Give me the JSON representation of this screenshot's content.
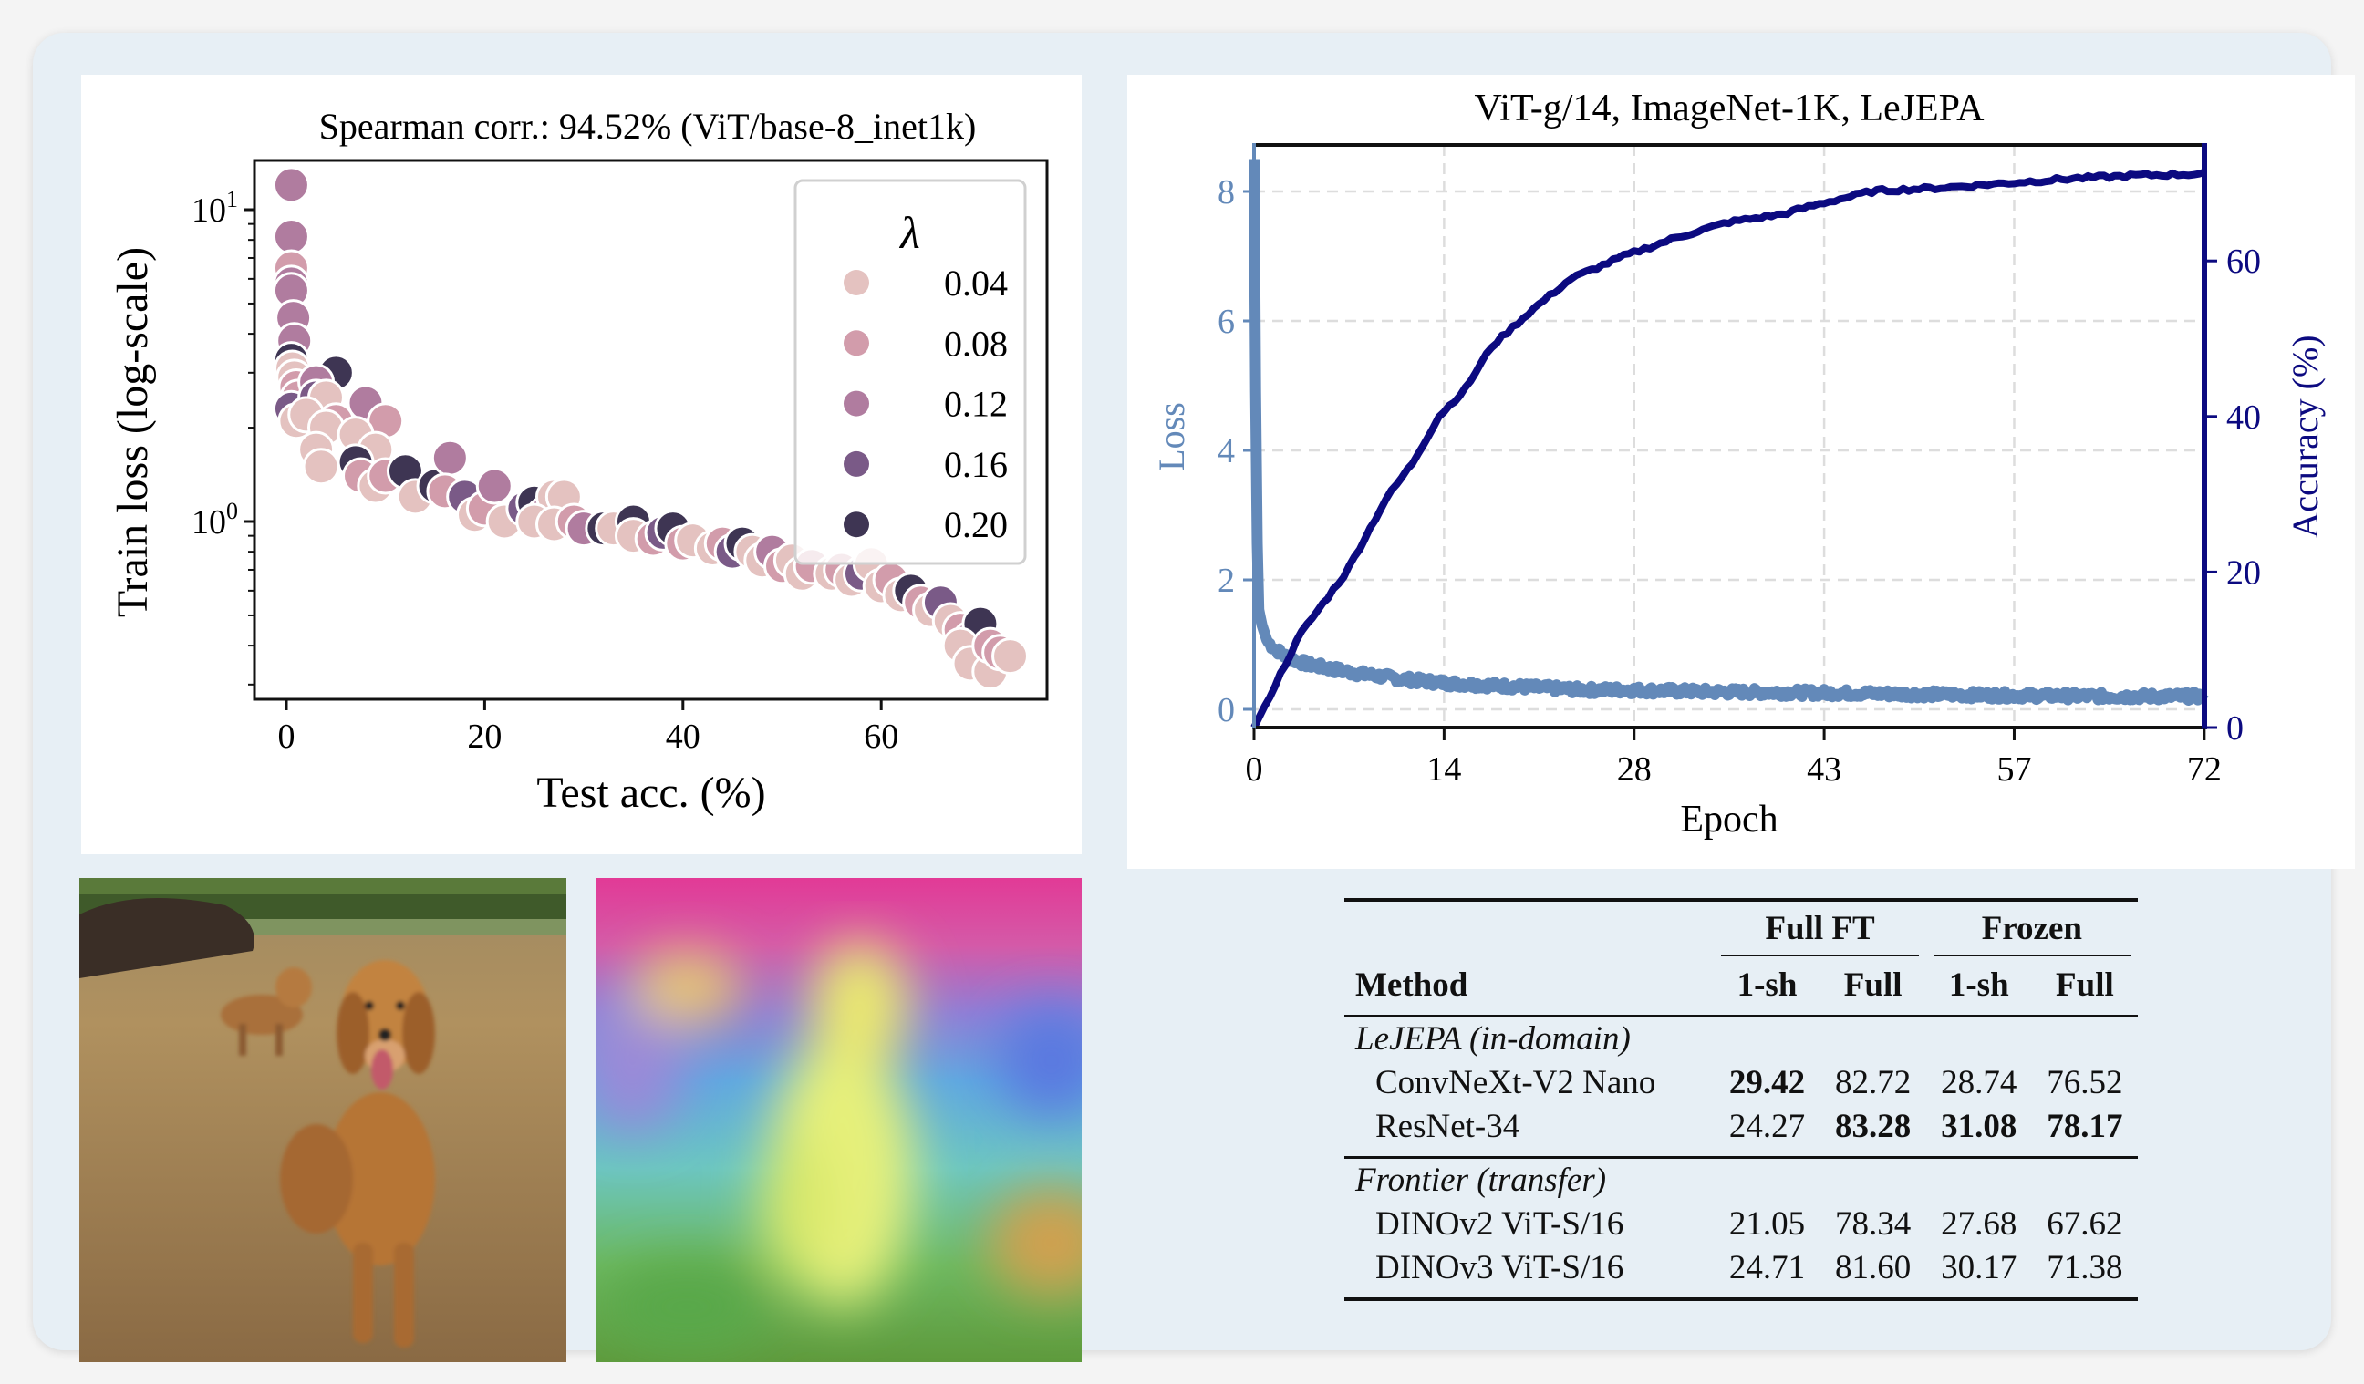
{
  "chart_data": [
    {
      "type": "scatter",
      "title": "Spearman corr.: 94.52% (ViT/base-8_inet1k)",
      "xlabel": "Test acc. (%)",
      "ylabel": "Train loss (log-scale)",
      "xscale": "linear",
      "yscale": "log",
      "xlim": [
        -3,
        77
      ],
      "ylim": [
        0.27,
        14.4
      ],
      "xticks": [
        "0",
        "20",
        "40",
        "60"
      ],
      "xtick_values": [
        0,
        20,
        40,
        60
      ],
      "yticks": [
        {
          "base": "10",
          "exp": "1",
          "value": 10
        },
        {
          "base": "10",
          "exp": "0",
          "value": 1
        }
      ],
      "legend": {
        "title": "λ",
        "placement": "top-right",
        "entries": [
          {
            "label": "0.04",
            "color": "#e4c2c0"
          },
          {
            "label": "0.08",
            "color": "#d29cab"
          },
          {
            "label": "0.12",
            "color": "#b07c9f"
          },
          {
            "label": "0.16",
            "color": "#7a5a87"
          },
          {
            "label": "0.20",
            "color": "#3e3553"
          }
        ]
      },
      "points_format": [
        "test_acc",
        "train_loss",
        "lambda_index"
      ],
      "points": [
        [
          0.5,
          12,
          2
        ],
        [
          0.5,
          8.2,
          2
        ],
        [
          0.5,
          6.5,
          1
        ],
        [
          0.5,
          5.8,
          2
        ],
        [
          0.5,
          5.5,
          2
        ],
        [
          0.7,
          4.5,
          2
        ],
        [
          0.8,
          3.8,
          2
        ],
        [
          0.5,
          3.3,
          4
        ],
        [
          0.6,
          3.1,
          0
        ],
        [
          0.8,
          2.9,
          0
        ],
        [
          1,
          2.7,
          1
        ],
        [
          1.2,
          2.5,
          1
        ],
        [
          0.5,
          2.3,
          3
        ],
        [
          1,
          2.1,
          0
        ],
        [
          5,
          3,
          4
        ],
        [
          3,
          2.8,
          2
        ],
        [
          3,
          2.5,
          3
        ],
        [
          4,
          2.5,
          0
        ],
        [
          2,
          2.2,
          0
        ],
        [
          5,
          2.1,
          1
        ],
        [
          4,
          2,
          0
        ],
        [
          8,
          2.4,
          2
        ],
        [
          10,
          2.1,
          1
        ],
        [
          7,
          1.9,
          0
        ],
        [
          9,
          1.7,
          0
        ],
        [
          3,
          1.7,
          0
        ],
        [
          3.5,
          1.5,
          0
        ],
        [
          7,
          1.55,
          4
        ],
        [
          7.5,
          1.4,
          1
        ],
        [
          9,
          1.3,
          0
        ],
        [
          10,
          1.4,
          1
        ],
        [
          12,
          1.45,
          4
        ],
        [
          13,
          1.2,
          0
        ],
        [
          15,
          1.3,
          4
        ],
        [
          16.5,
          1.6,
          2
        ],
        [
          16,
          1.25,
          1
        ],
        [
          18,
          1.2,
          3
        ],
        [
          19,
          1.05,
          0
        ],
        [
          20,
          1.1,
          1
        ],
        [
          21,
          1.3,
          2
        ],
        [
          22,
          1.0,
          0
        ],
        [
          24,
          1.1,
          3
        ],
        [
          25,
          1.15,
          4
        ],
        [
          26,
          1.05,
          2
        ],
        [
          27,
          1.2,
          0
        ],
        [
          28,
          1.2,
          0
        ],
        [
          25,
          1.0,
          0
        ],
        [
          27,
          0.98,
          0
        ],
        [
          29,
          1.0,
          1
        ],
        [
          30,
          0.95,
          2
        ],
        [
          32,
          0.95,
          4
        ],
        [
          33,
          0.95,
          0
        ],
        [
          35,
          1.0,
          4
        ],
        [
          35,
          0.9,
          0
        ],
        [
          37,
          0.88,
          1
        ],
        [
          38,
          0.92,
          3
        ],
        [
          39,
          0.95,
          4
        ],
        [
          40,
          0.85,
          1
        ],
        [
          41,
          0.87,
          0
        ],
        [
          43,
          0.82,
          0
        ],
        [
          44,
          0.85,
          1
        ],
        [
          45,
          0.8,
          3
        ],
        [
          46,
          0.85,
          4
        ],
        [
          47,
          0.8,
          0
        ],
        [
          48,
          0.75,
          0
        ],
        [
          49,
          0.8,
          2
        ],
        [
          50,
          0.72,
          1
        ],
        [
          51,
          0.75,
          0
        ],
        [
          52,
          0.68,
          0
        ],
        [
          53,
          0.72,
          1
        ],
        [
          55,
          0.68,
          0
        ],
        [
          56,
          0.7,
          1
        ],
        [
          57,
          0.65,
          0
        ],
        [
          58,
          0.68,
          3
        ],
        [
          59,
          0.73,
          0
        ],
        [
          60,
          0.62,
          0
        ],
        [
          61,
          0.65,
          1
        ],
        [
          62,
          0.58,
          0
        ],
        [
          63,
          0.6,
          4
        ],
        [
          64,
          0.55,
          1
        ],
        [
          65,
          0.52,
          0
        ],
        [
          66,
          0.55,
          3
        ],
        [
          67,
          0.48,
          0
        ],
        [
          68,
          0.45,
          1
        ],
        [
          69,
          0.42,
          2
        ],
        [
          70,
          0.47,
          4
        ],
        [
          68,
          0.4,
          0
        ],
        [
          69,
          0.35,
          0
        ],
        [
          71,
          0.33,
          0
        ],
        [
          71,
          0.4,
          1
        ],
        [
          72,
          0.38,
          1
        ],
        [
          73,
          0.37,
          0
        ]
      ]
    },
    {
      "type": "line",
      "title": "ViT-g/14, ImageNet-1K, LeJEPA",
      "xlabel": "Epoch",
      "ylabel_left": "Loss",
      "ylabel_right": "Accuracy (%)",
      "xlim": [
        0,
        72
      ],
      "ylim_left": [
        -0.3,
        8.7
      ],
      "ylim_right": [
        0,
        75
      ],
      "xticks": [
        "0",
        "14",
        "28",
        "43",
        "57",
        "72"
      ],
      "yticks_left": [
        "0",
        "2",
        "4",
        "6",
        "8"
      ],
      "yticks_right": [
        "0",
        "20",
        "40",
        "60"
      ],
      "grid": true,
      "series": [
        {
          "name": "Loss",
          "axis": "left",
          "color": "#6389b9",
          "x": [
            0,
            0.15,
            0.3,
            0.6,
            1,
            1.5,
            2.5,
            4,
            6,
            8,
            10,
            12,
            15,
            20,
            25,
            28,
            35,
            45,
            55,
            65,
            72
          ],
          "y": [
            8.5,
            4.0,
            1.6,
            1.3,
            1.05,
            0.95,
            0.8,
            0.7,
            0.62,
            0.55,
            0.5,
            0.45,
            0.4,
            0.35,
            0.3,
            0.3,
            0.27,
            0.25,
            0.22,
            0.2,
            0.2
          ]
        },
        {
          "name": "Accuracy",
          "axis": "right",
          "color": "#0c0a80",
          "x": [
            0,
            3.5,
            7,
            10,
            12,
            14,
            16,
            18,
            21,
            24,
            28,
            32,
            36,
            40,
            43,
            47,
            52,
            57,
            62,
            67,
            72
          ],
          "y": [
            0,
            12,
            20,
            29.4,
            34,
            40,
            43.5,
            49,
            53.6,
            57.7,
            60.6,
            63,
            65,
            66,
            67.4,
            69,
            69.4,
            70,
            70.6,
            71,
            71.2
          ]
        }
      ]
    },
    {
      "type": "table",
      "group_headers": [
        "Full FT",
        "Frozen"
      ],
      "columns": [
        "Method",
        "1-sh",
        "Full",
        "1-sh",
        "Full"
      ],
      "sections": [
        {
          "title": "LeJEPA (in-domain)",
          "rows": [
            {
              "method": "ConvNeXt-V2 Nano",
              "values": [
                "29.42",
                "82.72",
                "28.74",
                "76.52"
              ],
              "bold": [
                true,
                false,
                false,
                false
              ]
            },
            {
              "method": "ResNet-34",
              "values": [
                "24.27",
                "83.28",
                "31.08",
                "78.17"
              ],
              "bold": [
                false,
                true,
                true,
                true
              ]
            }
          ]
        },
        {
          "title": "Frontier (transfer)",
          "rows": [
            {
              "method": "DINOv2 ViT-S/16",
              "values": [
                "21.05",
                "78.34",
                "27.68",
                "67.62"
              ],
              "bold": [
                false,
                false,
                false,
                false
              ]
            },
            {
              "method": "DINOv3 ViT-S/16",
              "values": [
                "24.71",
                "81.60",
                "30.17",
                "71.38"
              ],
              "bold": [
                false,
                false,
                false,
                false
              ]
            }
          ]
        }
      ]
    }
  ]
}
